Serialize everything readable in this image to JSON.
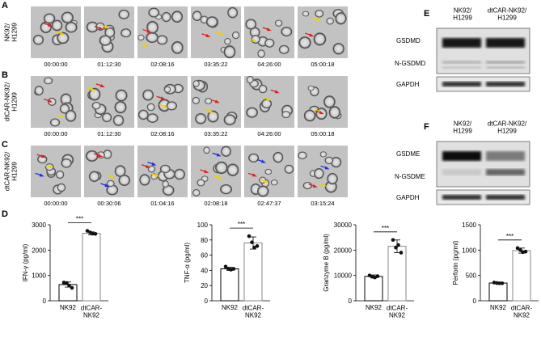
{
  "panel_a": {
    "letter": "A",
    "label": "NK92/\nH1299",
    "times": [
      "00:00:00",
      "01:12:30",
      "02:08:16",
      "03:35:22",
      "04:26:00",
      "05:00:18"
    ]
  },
  "panel_b": {
    "letter": "B",
    "label": "dtCAR-NK92/\nH1299",
    "times": [
      "00:00:00",
      "01:12:30",
      "02:08:16",
      "03:35:22",
      "04:26:00",
      "05:00:18"
    ]
  },
  "panel_c": {
    "letter": "C",
    "label": "dtCAR-NK92/\nH1299",
    "times": [
      "00:00:00",
      "00:30:06",
      "01:04:16",
      "02:08:18",
      "02:47:37",
      "03:15:24"
    ]
  },
  "panel_d": {
    "letter": "D"
  },
  "panel_e": {
    "letter": "E",
    "columns": [
      "NK92/\nH1299",
      "dtCAR-NK92/\nH1299"
    ],
    "bands": [
      "GSDMD",
      "N-GSDMD",
      "GAPDH"
    ]
  },
  "panel_f": {
    "letter": "F",
    "columns": [
      "NK92/\nH1299",
      "dtCAR-NK92/\nH1299"
    ],
    "bands": [
      "GSDME",
      "N-GSDME",
      "GAPDH"
    ]
  },
  "chart_data": [
    {
      "type": "bar",
      "ylabel": "IFN-γ (pg/ml)",
      "categories": [
        "NK92",
        "dtCAR-\nNK92"
      ],
      "values": [
        640,
        2660
      ],
      "errors": [
        100,
        60
      ],
      "points": [
        [
          720,
          700,
          600,
          510
        ],
        [
          2760,
          2700,
          2650,
          2640
        ]
      ],
      "significance": "***",
      "ylim": [
        0,
        3000
      ],
      "yticks": [
        0,
        1000,
        2000,
        3000
      ]
    },
    {
      "type": "bar",
      "ylabel": "TNF-α (pg/ml)",
      "categories": [
        "NK92",
        "dtCAR-\nNK92"
      ],
      "values": [
        42,
        76
      ],
      "errors": [
        2,
        8
      ],
      "points": [
        [
          45,
          42,
          41,
          42
        ],
        [
          85,
          77,
          70,
          72
        ]
      ],
      "significance": "***",
      "ylim": [
        0,
        100
      ],
      "yticks": [
        0,
        20,
        40,
        60,
        80,
        100
      ]
    },
    {
      "type": "bar",
      "ylabel": "Granzyme B (pg/ml)",
      "categories": [
        "NK92",
        "dtCAR-\nNK92"
      ],
      "values": [
        9600,
        21500
      ],
      "errors": [
        600,
        2500
      ],
      "points": [
        [
          10000,
          9500,
          9200,
          9700
        ],
        [
          24000,
          21000,
          22000,
          19000
        ]
      ],
      "significance": "***",
      "ylim": [
        0,
        30000
      ],
      "yticks": [
        0,
        10000,
        20000,
        30000
      ]
    },
    {
      "type": "bar",
      "ylabel": "Perforin (pg/ml)",
      "categories": [
        "NK92",
        "dtCAR-\nNK92"
      ],
      "values": [
        350,
        990
      ],
      "errors": [
        15,
        50
      ],
      "points": [
        [
          360,
          350,
          345,
          345
        ],
        [
          1040,
          1000,
          960,
          970
        ]
      ],
      "significance": "***",
      "ylim": [
        0,
        1500
      ],
      "yticks": [
        0,
        500,
        1000,
        1500
      ]
    }
  ]
}
